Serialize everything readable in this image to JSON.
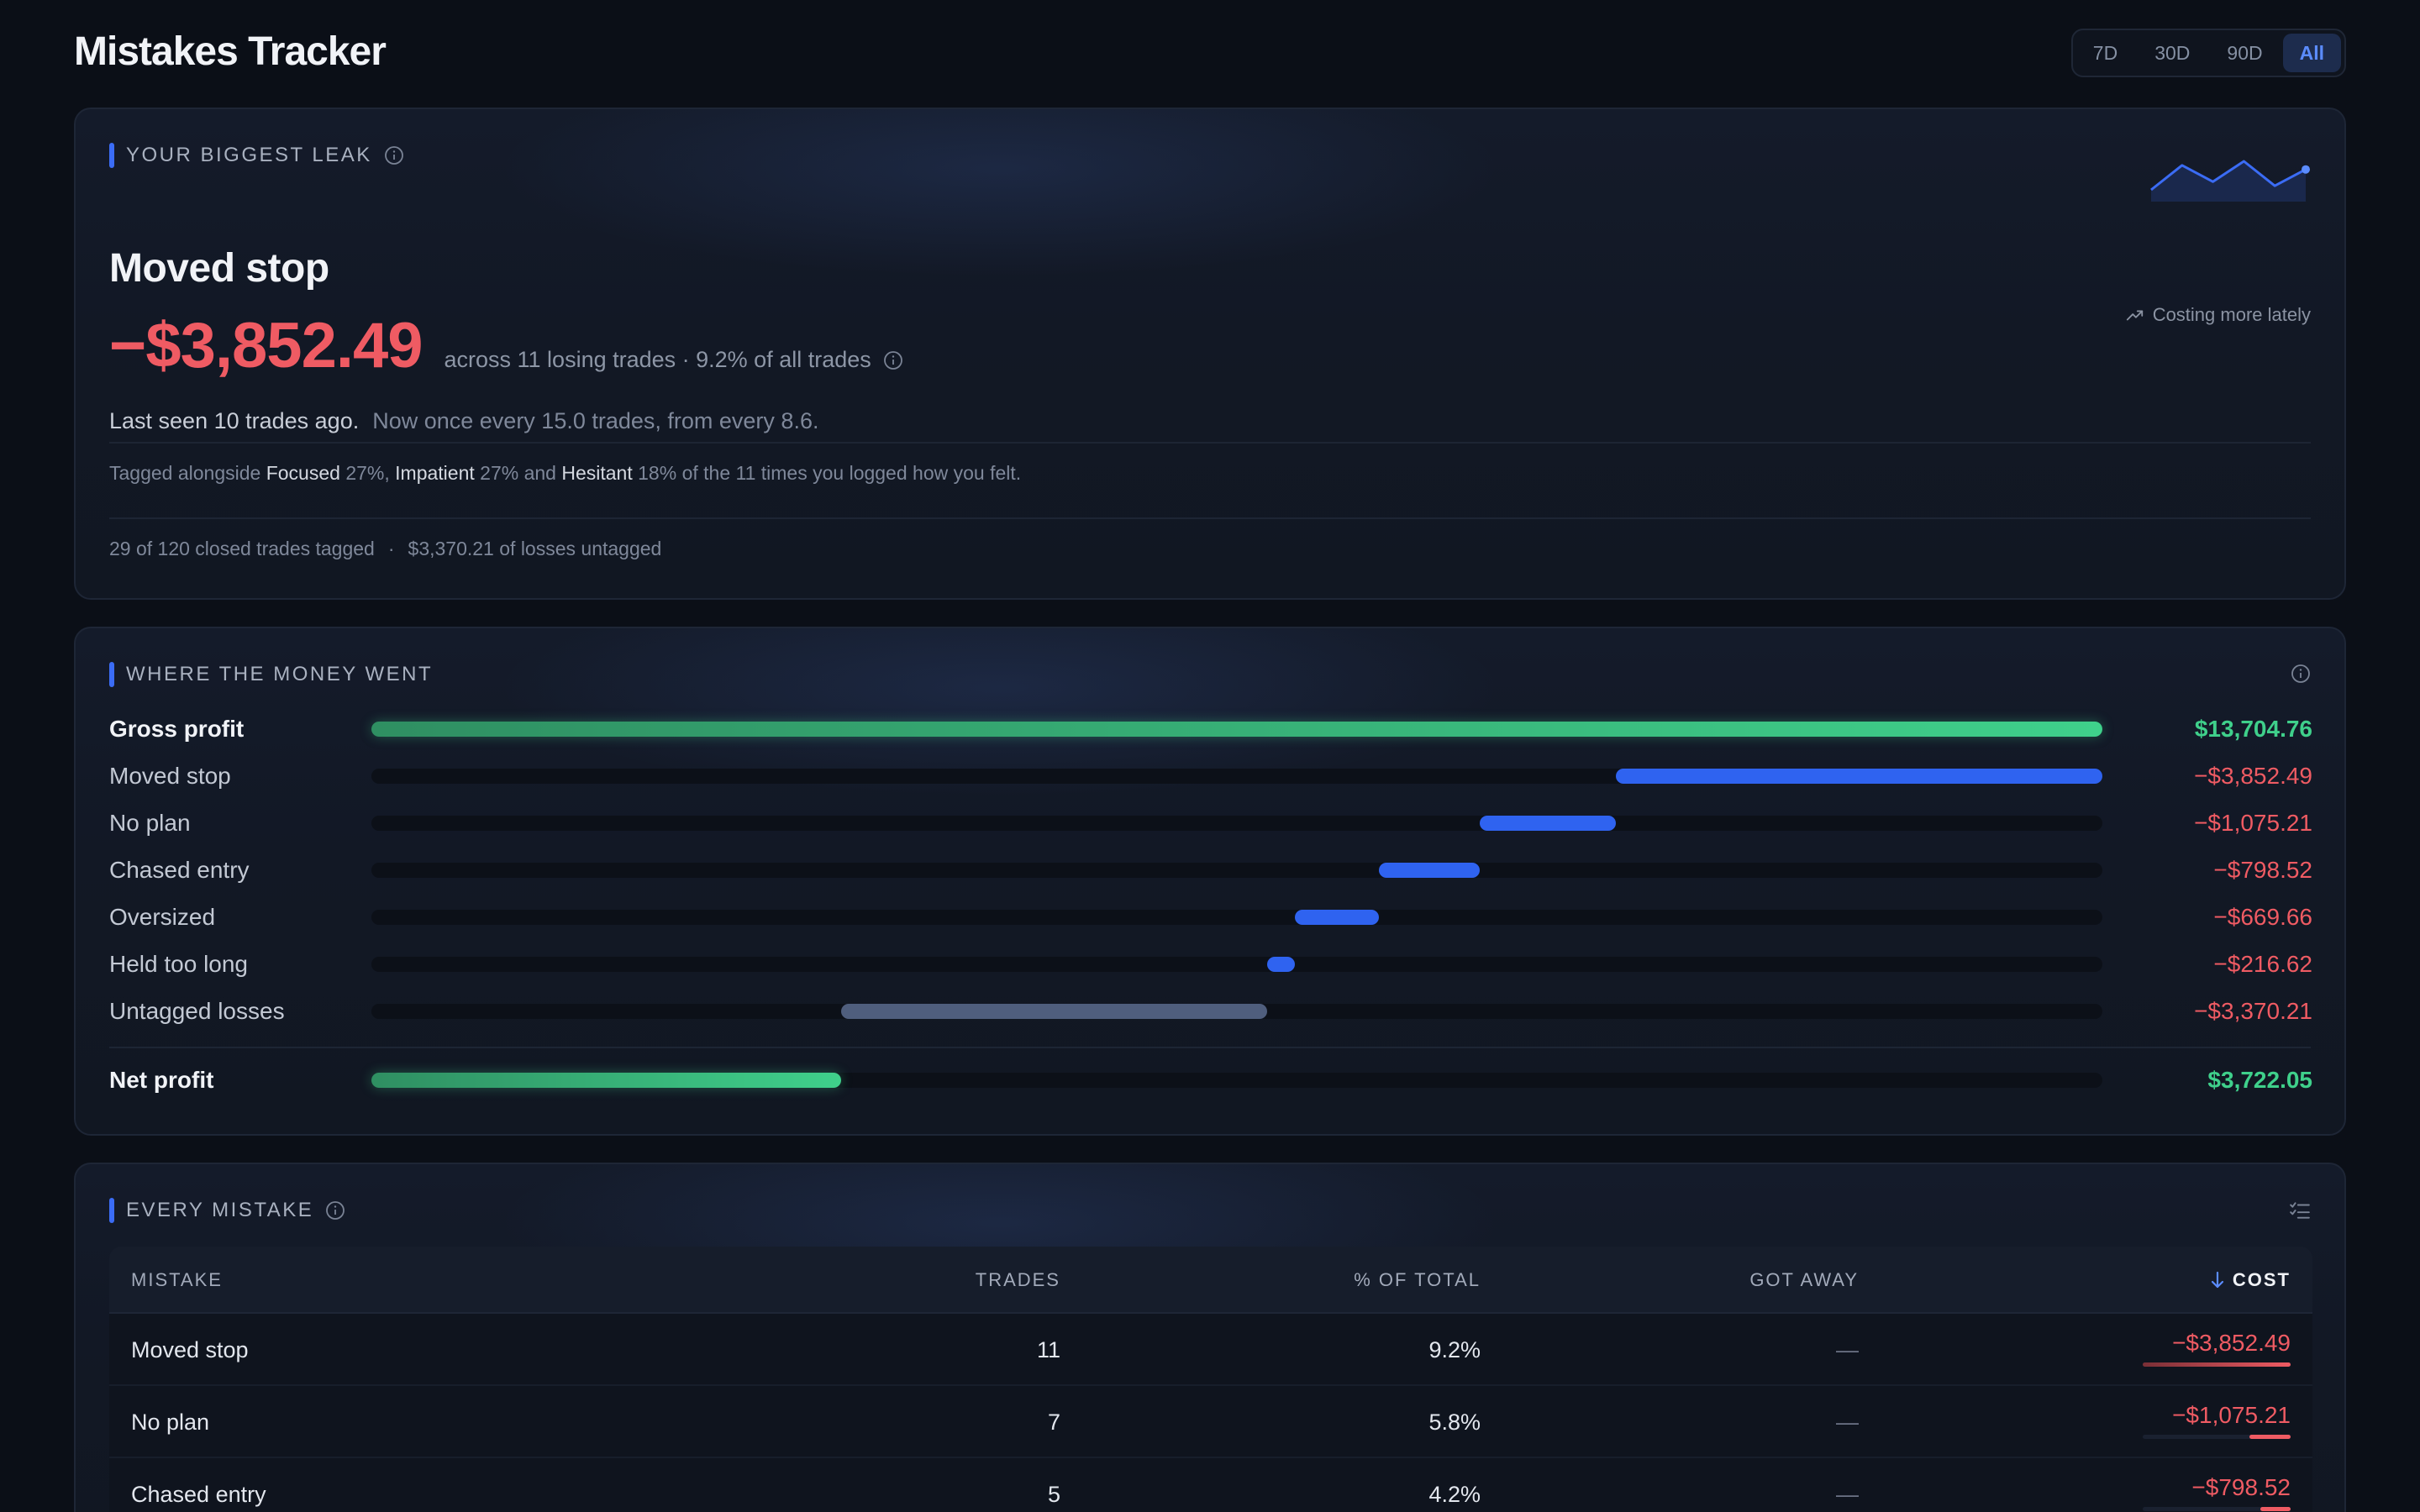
{
  "header": {
    "title": "Mistakes Tracker",
    "ranges": [
      {
        "label": "7D",
        "active": false
      },
      {
        "label": "30D",
        "active": false
      },
      {
        "label": "90D",
        "active": false
      },
      {
        "label": "All",
        "active": true
      }
    ]
  },
  "biggest_leak": {
    "section_label": "YOUR BIGGEST LEAK",
    "trend_note": "Costing more lately",
    "sparkline_values": [
      3,
      6,
      4,
      6.5,
      3.5,
      5.5
    ],
    "mistake_name": "Moved stop",
    "amount": "−$3,852.49",
    "meta": "across 11 losing trades · 9.2% of all trades",
    "last_seen": "Last seen 10 trades ago.",
    "rate": "Now once every 15.0 trades, from every 8.6.",
    "tagged_prefix": "Tagged alongside",
    "emotions": [
      {
        "name": "Focused",
        "pct": "27%"
      },
      {
        "name": "Impatient",
        "pct": "27%"
      },
      {
        "name": "Hesitant",
        "pct": "18%"
      }
    ],
    "tagged_and": "and",
    "tagged_suffix": "of the 11 times you logged how you felt.",
    "coverage_tagged": "29 of 120 closed trades tagged",
    "coverage_sep": "·",
    "coverage_untagged": "$3,370.21 of losses untagged"
  },
  "waterfall": {
    "section_label": "WHERE THE MONEY WENT",
    "rows": [
      {
        "label": "Gross profit",
        "value": "$13,704.76",
        "kind": "gross",
        "start": 0,
        "end": 13704.76
      },
      {
        "label": "Moved stop",
        "value": "−$3,852.49",
        "kind": "mistake",
        "start": 9852.27,
        "end": 13704.76
      },
      {
        "label": "No plan",
        "value": "−$1,075.21",
        "kind": "mistake",
        "start": 8777.06,
        "end": 9852.27
      },
      {
        "label": "Chased entry",
        "value": "−$798.52",
        "kind": "mistake",
        "start": 7978.54,
        "end": 8777.06
      },
      {
        "label": "Oversized",
        "value": "−$669.66",
        "kind": "mistake",
        "start": 7308.88,
        "end": 7978.54
      },
      {
        "label": "Held too long",
        "value": "−$216.62",
        "kind": "mistake",
        "start": 7092.26,
        "end": 7308.88
      },
      {
        "label": "Untagged losses",
        "value": "−$3,370.21",
        "kind": "untagged",
        "start": 3722.05,
        "end": 7092.26
      }
    ],
    "net": {
      "label": "Net profit",
      "value": "$3,722.05",
      "start": 0,
      "end": 3722.05
    },
    "scale_max": 13704.76,
    "colors": {
      "gross": "#3fd08b",
      "mistake": "#2f63f0",
      "untagged": "#4f5e7d",
      "negative": "#ef5b63"
    }
  },
  "mistakes_table": {
    "section_label": "EVERY MISTAKE",
    "columns": {
      "mistake": "MISTAKE",
      "trades": "TRADES",
      "pct": "% OF TOTAL",
      "got_away": "GOT AWAY",
      "cost": "COST"
    },
    "rows": [
      {
        "name": "Moved stop",
        "trades": "11",
        "pct": "9.2%",
        "got_away": "—",
        "cost": "−$3,852.49",
        "cost_value": 3852.49
      },
      {
        "name": "No plan",
        "trades": "7",
        "pct": "5.8%",
        "got_away": "—",
        "cost": "−$1,075.21",
        "cost_value": 1075.21
      },
      {
        "name": "Chased entry",
        "trades": "5",
        "pct": "4.2%",
        "got_away": "—",
        "cost": "−$798.52",
        "cost_value": 798.52
      }
    ]
  }
}
